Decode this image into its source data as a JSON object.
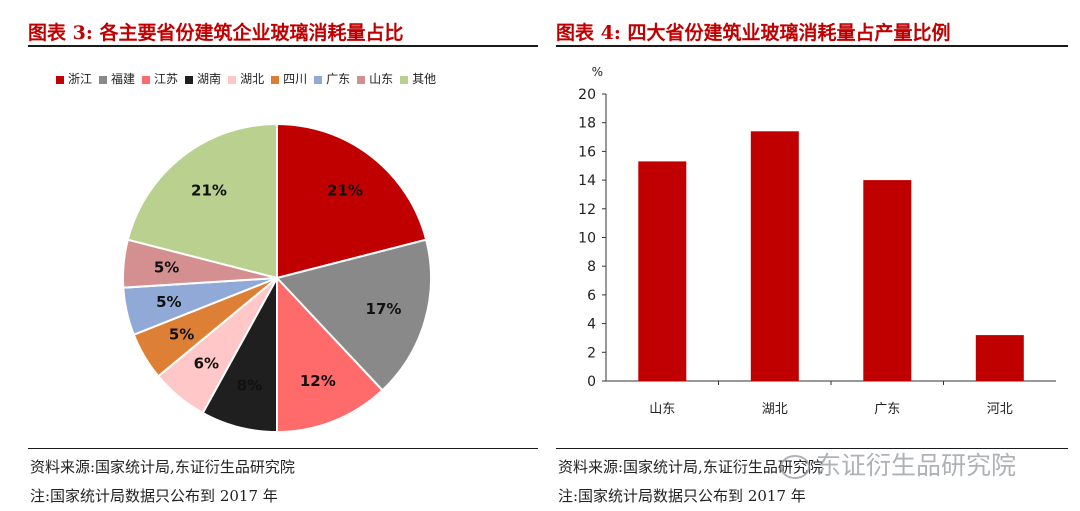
{
  "left": {
    "title": "图表 3:   各主要省份建筑企业玻璃消耗量占比",
    "source": "资料来源:国家统计局,东证衍生品研究院",
    "note": "注:国家统计局数据只公布到 2017 年"
  },
  "right": {
    "title": "图表 4:  四大省份建筑业玻璃消耗量占产量比例",
    "source": "资料来源:国家统计局,东证衍生品研究院",
    "note": "注:国家统计局数据只公布到 2017 年"
  },
  "watermark": "东证衍生品研究院",
  "colors": {
    "accent": "#c00000"
  },
  "chart_data": [
    {
      "type": "pie",
      "title": "",
      "legend_position": "top",
      "slices": [
        {
          "label": "浙江",
          "value": 21,
          "value_label": "21%",
          "color": "#c00000"
        },
        {
          "label": "福建",
          "value": 17,
          "value_label": "17%",
          "color": "#898989"
        },
        {
          "label": "江苏",
          "value": 12,
          "value_label": "12%",
          "color": "#ff6a6a"
        },
        {
          "label": "湖南",
          "value": 8,
          "value_label": "8%",
          "color": "#1f1f1f"
        },
        {
          "label": "湖北",
          "value": 6,
          "value_label": "6%",
          "color": "#ffc7c7"
        },
        {
          "label": "四川",
          "value": 5,
          "value_label": "5%",
          "color": "#dd8035"
        },
        {
          "label": "广东",
          "value": 5,
          "value_label": "5%",
          "color": "#91a9d6"
        },
        {
          "label": "山东",
          "value": 5,
          "value_label": "5%",
          "color": "#d49090"
        },
        {
          "label": "其他",
          "value": 21,
          "value_label": "21%",
          "color": "#b9d08f"
        }
      ]
    },
    {
      "type": "bar",
      "title": "",
      "unit_label": "%",
      "categories": [
        "山东",
        "湖北",
        "广东",
        "河北"
      ],
      "values": [
        15.3,
        17.4,
        14.0,
        3.2
      ],
      "color": "#c00000",
      "ylim": [
        0,
        20
      ],
      "yticks": [
        0,
        2,
        4,
        6,
        8,
        10,
        12,
        14,
        16,
        18,
        20
      ],
      "grid": false
    }
  ]
}
